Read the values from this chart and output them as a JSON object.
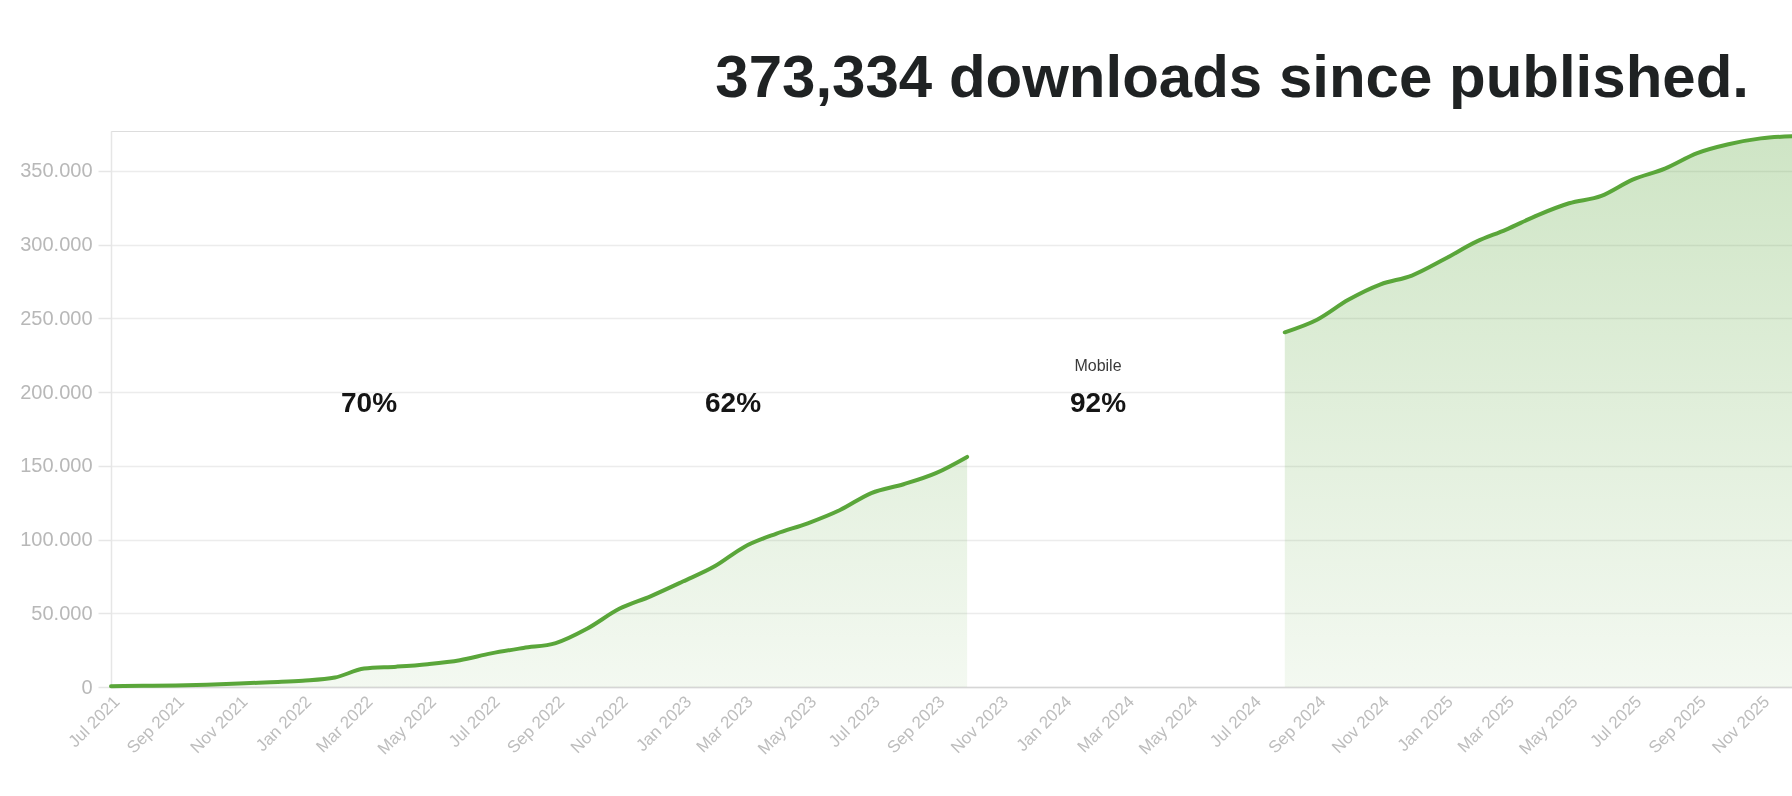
{
  "chart_data": {
    "type": "area",
    "title": "373,334 downloads since published.",
    "x": [
      "2021-07",
      "2021-08",
      "2021-09",
      "2021-10",
      "2021-11",
      "2021-12",
      "2022-01",
      "2022-02",
      "2022-03",
      "2022-04",
      "2022-05",
      "2022-06",
      "2022-07",
      "2022-08",
      "2022-09",
      "2022-10",
      "2022-11",
      "2022-12",
      "2023-01",
      "2023-02",
      "2023-03",
      "2023-04",
      "2023-05",
      "2023-06",
      "2023-07",
      "2023-08",
      "2023-09",
      "2023-10",
      "2023-11",
      "2023-12",
      "2024-01",
      "2024-02",
      "2024-03",
      "2024-04",
      "2024-05",
      "2024-06",
      "2024-07",
      "2024-08",
      "2024-09",
      "2024-10",
      "2024-11",
      "2024-12",
      "2025-01",
      "2025-02",
      "2025-03",
      "2025-04",
      "2025-05",
      "2025-06",
      "2025-07",
      "2025-08",
      "2025-09",
      "2025-10",
      "2025-11",
      "2025-12"
    ],
    "series": [
      {
        "color": "#5aa63a",
        "values": [
          500,
          800,
          1000,
          1500,
          2300,
          3300,
          4300,
          6400,
          12500,
          13800,
          15500,
          18200,
          22800,
          26500,
          29800,
          39500,
          53000,
          61500,
          71500,
          82000,
          95000,
          104000,
          111000,
          120000,
          131500,
          137500,
          145000,
          156000,
          null,
          null,
          null,
          null,
          null,
          null,
          null,
          null,
          null,
          240500,
          249000,
          262500,
          273000,
          279000,
          290000,
          302000,
          310000,
          320000,
          328000,
          333000,
          344000,
          351500,
          362000,
          368000,
          372000,
          373500
        ]
      }
    ],
    "xlim": [
      "2021-07",
      "2025-12"
    ],
    "xticks": [
      {
        "value": "2021-07",
        "label": "Jul 2021"
      },
      {
        "value": "2021-09",
        "label": "Sep 2021"
      },
      {
        "value": "2021-11",
        "label": "Nov 2021"
      },
      {
        "value": "2022-01",
        "label": "Jan 2022"
      },
      {
        "value": "2022-03",
        "label": "Mar 2022"
      },
      {
        "value": "2022-05",
        "label": "May 2022"
      },
      {
        "value": "2022-07",
        "label": "Jul 2022"
      },
      {
        "value": "2022-09",
        "label": "Sep 2022"
      },
      {
        "value": "2022-11",
        "label": "Nov 2022"
      },
      {
        "value": "2023-01",
        "label": "Jan 2023"
      },
      {
        "value": "2023-03",
        "label": "Mar 2023"
      },
      {
        "value": "2023-05",
        "label": "May 2023"
      },
      {
        "value": "2023-07",
        "label": "Jul 2023"
      },
      {
        "value": "2023-09",
        "label": "Sep 2023"
      },
      {
        "value": "2023-11",
        "label": "Nov 2023"
      },
      {
        "value": "2024-01",
        "label": "Jan 2024"
      },
      {
        "value": "2024-03",
        "label": "Mar 2024"
      },
      {
        "value": "2024-05",
        "label": "May 2024"
      },
      {
        "value": "2024-07",
        "label": "Jul 2024"
      },
      {
        "value": "2024-09",
        "label": "Sep 2024"
      },
      {
        "value": "2024-11",
        "label": "Nov 2024"
      },
      {
        "value": "2025-01",
        "label": "Jan 2025"
      },
      {
        "value": "2025-03",
        "label": "Mar 2025"
      },
      {
        "value": "2025-05",
        "label": "May 2025"
      },
      {
        "value": "2025-07",
        "label": "Jul 2025"
      },
      {
        "value": "2025-09",
        "label": "Sep 2025"
      },
      {
        "value": "2025-11",
        "label": "Nov 2025"
      }
    ],
    "ylim": [
      0,
      377000
    ],
    "yticks": [
      0,
      {
        "value": 50000,
        "label": "50.000"
      },
      {
        "value": 100000,
        "label": "100.000"
      },
      {
        "value": 150000,
        "label": "150.000"
      },
      {
        "value": 200000,
        "label": "200.000"
      },
      {
        "value": 250000,
        "label": "250.000"
      },
      {
        "value": 300000,
        "label": "300.000"
      },
      {
        "value": 350000,
        "label": "350.000"
      }
    ],
    "grid": "y",
    "annotations": [
      "70%",
      "62%",
      "Mobile",
      "92%"
    ]
  }
}
